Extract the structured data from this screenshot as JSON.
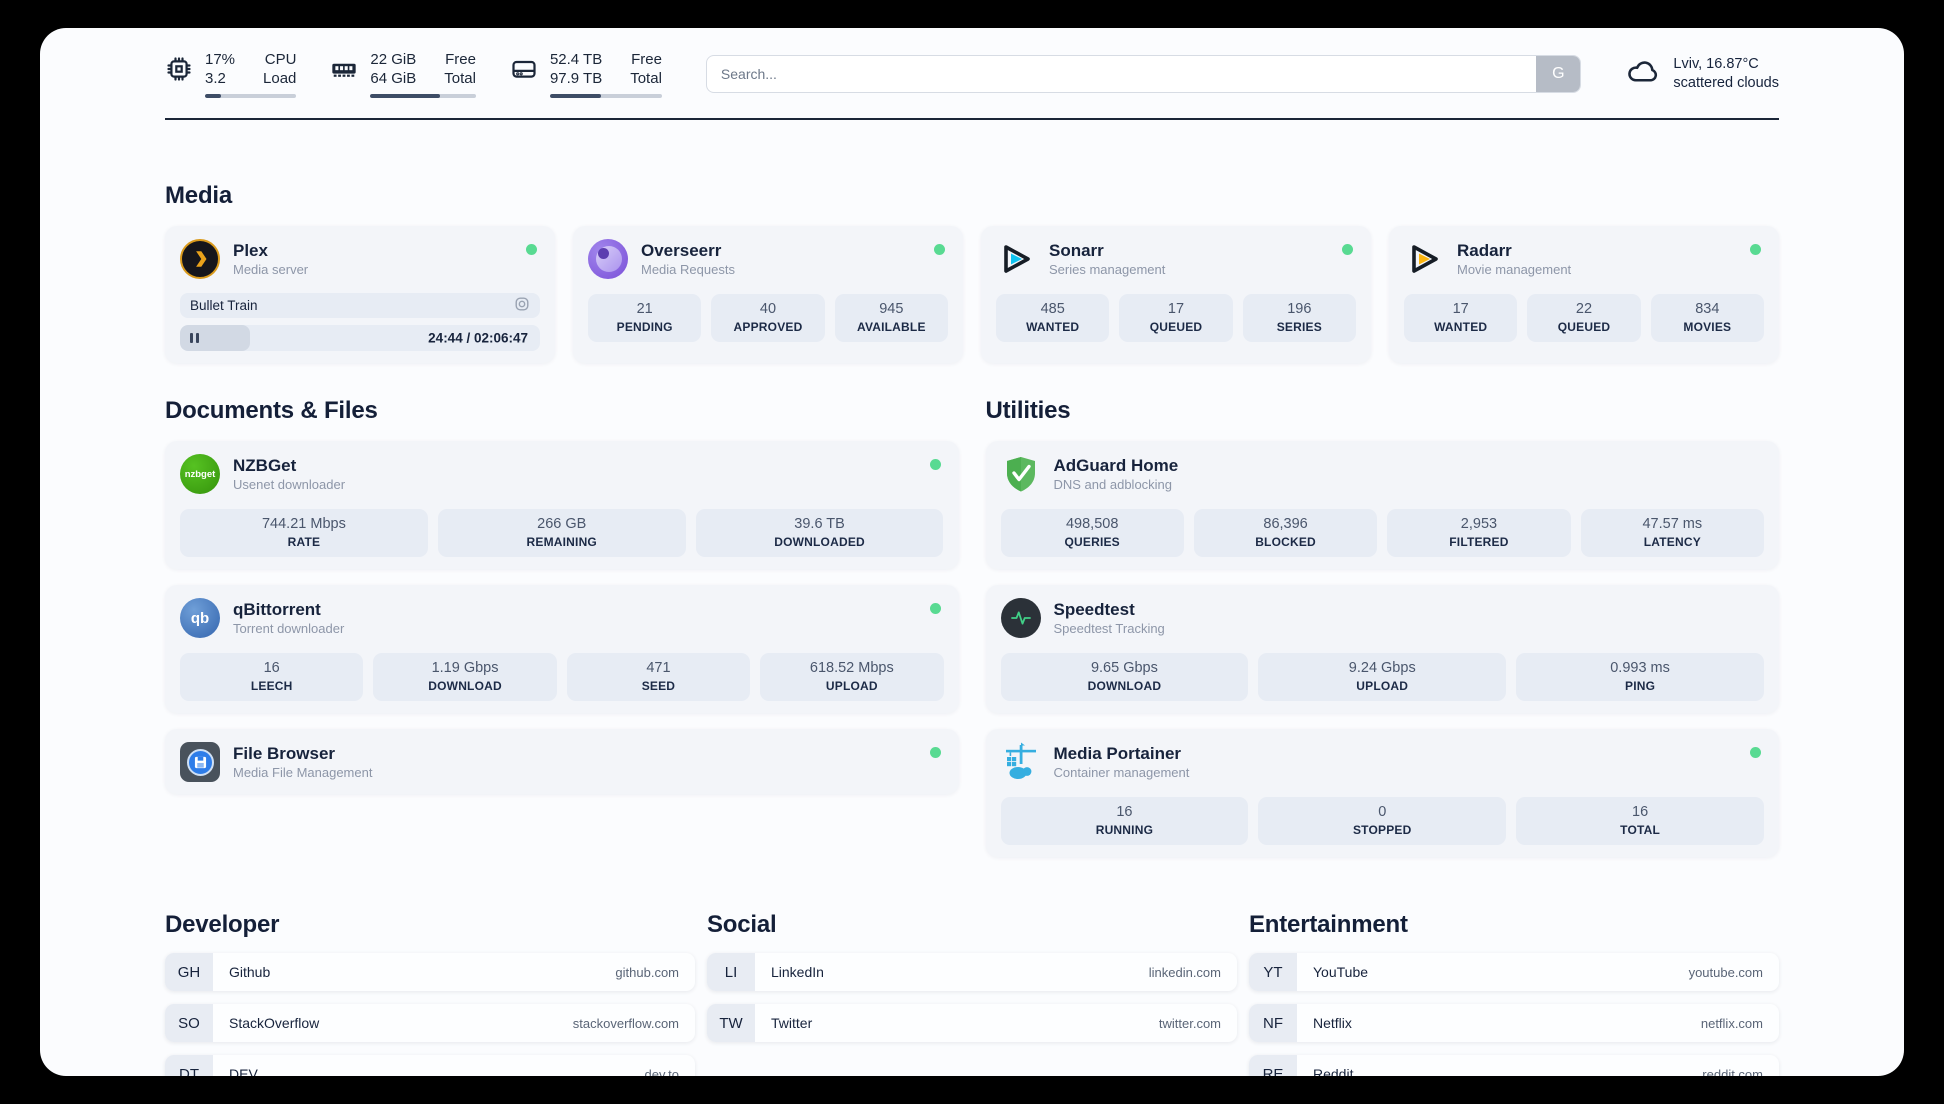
{
  "colors": {
    "status_online": "#58da92",
    "accent_dark": "#1b2638",
    "page_bg": "#fbfcfe"
  },
  "header": {
    "stats": [
      {
        "icon": "cpu-icon",
        "row1_value": "17%",
        "row1_label": "CPU",
        "row2_value": "3.2",
        "row2_label": "Load",
        "progress_pct": 17
      },
      {
        "icon": "memory-icon",
        "row1_value": "22 GiB",
        "row1_label": "Free",
        "row2_value": "64 GiB",
        "row2_label": "Total",
        "progress_pct": 66
      },
      {
        "icon": "disk-icon",
        "row1_value": "52.4 TB",
        "row1_label": "Free",
        "row2_value": "97.9 TB",
        "row2_label": "Total",
        "progress_pct": 46
      }
    ],
    "search": {
      "placeholder": "Search...",
      "button_label": "G"
    },
    "weather": {
      "icon": "cloud-icon",
      "line1": "Lviv, 16.87°C",
      "line2": "scattered clouds"
    }
  },
  "sections": {
    "media": {
      "title": "Media",
      "apps": {
        "plex": {
          "icon": "plex-icon",
          "name": "Plex",
          "desc": "Media server",
          "online": true,
          "player": {
            "track": "Bullet Train",
            "time": "24:44 / 02:06:47",
            "progress_pct": 19.5
          }
        },
        "overseerr": {
          "icon": "overseerr-icon",
          "name": "Overseerr",
          "desc": "Media Requests",
          "online": true,
          "stats": [
            {
              "value": "21",
              "label": "PENDING"
            },
            {
              "value": "40",
              "label": "APPROVED"
            },
            {
              "value": "945",
              "label": "AVAILABLE"
            }
          ]
        },
        "sonarr": {
          "icon": "sonarr-icon",
          "name": "Sonarr",
          "desc": "Series management",
          "online": true,
          "stats": [
            {
              "value": "485",
              "label": "WANTED"
            },
            {
              "value": "17",
              "label": "QUEUED"
            },
            {
              "value": "196",
              "label": "SERIES"
            }
          ]
        },
        "radarr": {
          "icon": "radarr-icon",
          "name": "Radarr",
          "desc": "Movie management",
          "online": true,
          "stats": [
            {
              "value": "17",
              "label": "WANTED"
            },
            {
              "value": "22",
              "label": "QUEUED"
            },
            {
              "value": "834",
              "label": "MOVIES"
            }
          ]
        }
      }
    },
    "documents": {
      "title": "Documents & Files",
      "apps": {
        "nzbget": {
          "icon": "nzbget-icon",
          "icon_text": "nzbget",
          "name": "NZBGet",
          "desc": "Usenet downloader",
          "online": true,
          "stats": [
            {
              "value": "744.21 Mbps",
              "label": "RATE"
            },
            {
              "value": "266 GB",
              "label": "REMAINING"
            },
            {
              "value": "39.6 TB",
              "label": "DOWNLOADED"
            }
          ]
        },
        "qbittorrent": {
          "icon": "qbittorrent-icon",
          "icon_text": "qb",
          "name": "qBittorrent",
          "desc": "Torrent downloader",
          "online": true,
          "stats": [
            {
              "value": "16",
              "label": "LEECH"
            },
            {
              "value": "1.19 Gbps",
              "label": "DOWNLOAD"
            },
            {
              "value": "471",
              "label": "SEED"
            },
            {
              "value": "618.52 Mbps",
              "label": "UPLOAD"
            }
          ]
        },
        "filebrowser": {
          "icon": "filebrowser-icon",
          "name": "File Browser",
          "desc": "Media File Management",
          "online": true
        }
      }
    },
    "utilities": {
      "title": "Utilities",
      "apps": {
        "adguard": {
          "icon": "adguard-icon",
          "name": "AdGuard Home",
          "desc": "DNS and adblocking",
          "online": false,
          "stats": [
            {
              "value": "498,508",
              "label": "QUERIES"
            },
            {
              "value": "86,396",
              "label": "BLOCKED"
            },
            {
              "value": "2,953",
              "label": "FILTERED"
            },
            {
              "value": "47.57 ms",
              "label": "LATENCY"
            }
          ]
        },
        "speedtest": {
          "icon": "speedtest-icon",
          "name": "Speedtest",
          "desc": "Speedtest Tracking",
          "online": false,
          "stats": [
            {
              "value": "9.65 Gbps",
              "label": "DOWNLOAD"
            },
            {
              "value": "9.24 Gbps",
              "label": "UPLOAD"
            },
            {
              "value": "0.993 ms",
              "label": "PING"
            }
          ]
        },
        "portainer": {
          "icon": "portainer-icon",
          "name": "Media Portainer",
          "desc": "Container management",
          "online": true,
          "stats": [
            {
              "value": "16",
              "label": "RUNNING"
            },
            {
              "value": "0",
              "label": "STOPPED"
            },
            {
              "value": "16",
              "label": "TOTAL"
            }
          ]
        }
      }
    },
    "bookmarks": {
      "developer": {
        "title": "Developer",
        "links": [
          {
            "abbr": "GH",
            "name": "Github",
            "url": "github.com"
          },
          {
            "abbr": "SO",
            "name": "StackOverflow",
            "url": "stackoverflow.com"
          },
          {
            "abbr": "DT",
            "name": "DEV",
            "url": "dev.to"
          }
        ]
      },
      "social": {
        "title": "Social",
        "links": [
          {
            "abbr": "LI",
            "name": "LinkedIn",
            "url": "linkedin.com"
          },
          {
            "abbr": "TW",
            "name": "Twitter",
            "url": "twitter.com"
          }
        ]
      },
      "entertainment": {
        "title": "Entertainment",
        "links": [
          {
            "abbr": "YT",
            "name": "YouTube",
            "url": "youtube.com"
          },
          {
            "abbr": "NF",
            "name": "Netflix",
            "url": "netflix.com"
          },
          {
            "abbr": "RE",
            "name": "Reddit",
            "url": "reddit.com"
          }
        ]
      }
    }
  }
}
